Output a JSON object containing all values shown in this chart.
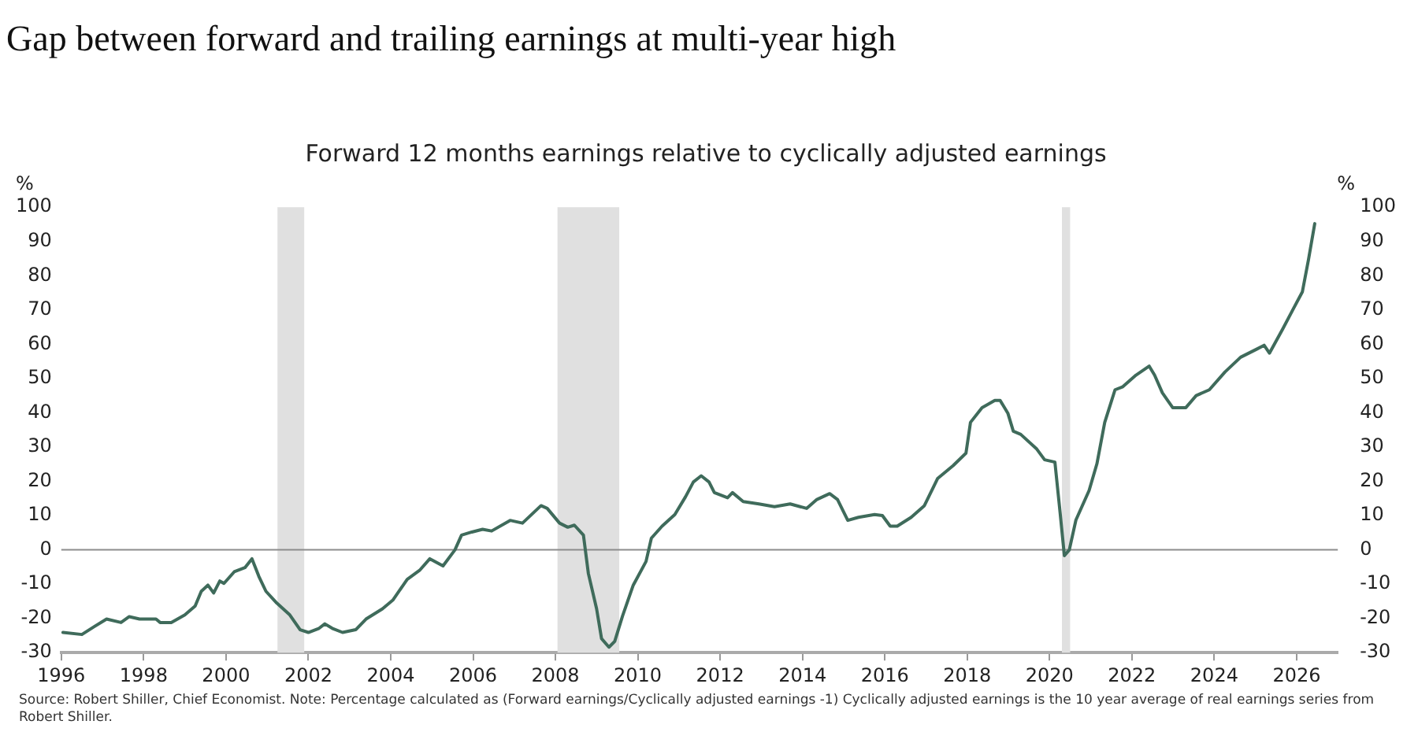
{
  "chart_data": {
    "type": "line",
    "title": "Gap between forward and trailing earnings at multi-year high",
    "subtitle": "Forward 12 months earnings relative to cyclically adjusted earnings",
    "ylabel": "%",
    "y2label": "%",
    "annotations": [
      "Source: Robert Shiller, Chief Economist. Note: Percentage calculated as (Forward earnings/Cyclically adjusted earnings -1) Cyclically adjusted earnings is the 10 year average of real earnings series from Robert Shiller."
    ],
    "xlim": [
      1996,
      2027
    ],
    "xticks": [
      1996,
      1998,
      2000,
      2002,
      2004,
      2006,
      2008,
      2010,
      2012,
      2014,
      2016,
      2018,
      2020,
      2022,
      2024,
      2026
    ],
    "ylim": [
      -30,
      100
    ],
    "yticks": [
      -30,
      -20,
      -10,
      0,
      10,
      20,
      30,
      40,
      50,
      60,
      70,
      80,
      90,
      100
    ],
    "y2lim": [
      -30,
      100
    ],
    "y2ticks": [
      -30,
      -20,
      -10,
      0,
      10,
      20,
      30,
      40,
      50,
      60,
      70,
      80,
      90,
      100
    ],
    "legend": false,
    "ref_lines": [
      {
        "axis": "y",
        "value": 0,
        "color": "#8c8c8c"
      }
    ],
    "bands": [
      {
        "axis": "x",
        "from": 2001.25,
        "to": 2001.9,
        "color": "#e0e0e0"
      },
      {
        "axis": "x",
        "from": 2008.05,
        "to": 2009.55,
        "color": "#e0e0e0"
      },
      {
        "axis": "x",
        "from": 2020.3,
        "to": 2020.5,
        "color": "#e0e0e0"
      }
    ],
    "series": [
      {
        "color": "#3f6b5b",
        "x": [
          1996.04,
          1996.5,
          1996.8,
          1997.1,
          1997.45,
          1997.65,
          1997.9,
          1998.3,
          1998.4,
          1998.67,
          1999,
          1999.25,
          1999.4,
          1999.56,
          1999.7,
          1999.85,
          1999.95,
          2000.2,
          2000.46,
          2000.63,
          2000.8,
          2000.97,
          2001.23,
          2001.55,
          2001.8,
          2002,
          2002.26,
          2002.4,
          2002.58,
          2002.83,
          2003.15,
          2003.4,
          2003.8,
          2004.05,
          2004.4,
          2004.7,
          2004.95,
          2005.27,
          2005.56,
          2005.72,
          2005.97,
          2006.23,
          2006.45,
          2006.9,
          2007.2,
          2007.65,
          2007.8,
          2008.1,
          2008.3,
          2008.46,
          2008.68,
          2008.8,
          2009,
          2009.12,
          2009.3,
          2009.44,
          2009.63,
          2009.89,
          2010.2,
          2010.33,
          2010.59,
          2010.9,
          2011.16,
          2011.35,
          2011.54,
          2011.73,
          2011.86,
          2012.18,
          2012.3,
          2012.56,
          2012.94,
          2013.32,
          2013.7,
          2014.1,
          2014.35,
          2014.66,
          2014.85,
          2015.1,
          2015.36,
          2015.75,
          2015.94,
          2016.13,
          2016.3,
          2016.64,
          2016.96,
          2017.28,
          2017.66,
          2017.97,
          2018.08,
          2018.36,
          2018.67,
          2018.8,
          2018.99,
          2019.12,
          2019.3,
          2019.69,
          2019.88,
          2020.13,
          2020.26,
          2020.36,
          2020.48,
          2020.64,
          2020.96,
          2021.15,
          2021.34,
          2021.59,
          2021.78,
          2022.1,
          2022.42,
          2022.55,
          2022.74,
          2022.99,
          2023.31,
          2023.56,
          2023.88,
          2024.26,
          2024.64,
          2025.02,
          2025.21,
          2025.34,
          2025.66,
          2025.91,
          2026.14,
          2026.29,
          2026.44
        ],
        "values": [
          -24.1,
          -24.7,
          -22.4,
          -20.2,
          -21.2,
          -19.5,
          -20.2,
          -20.2,
          -21.2,
          -21.2,
          -19,
          -16.4,
          -12.1,
          -10.3,
          -12.6,
          -9.1,
          -9.8,
          -6.4,
          -5.2,
          -2.6,
          -7.8,
          -12.1,
          -15.5,
          -19,
          -23.3,
          -24.1,
          -22.9,
          -21.6,
          -22.9,
          -24.1,
          -23.3,
          -20.2,
          -17.2,
          -14.7,
          -8.6,
          -6,
          -2.6,
          -4.7,
          0,
          4.3,
          5.2,
          6,
          5.5,
          8.6,
          7.8,
          12.9,
          12.1,
          7.8,
          6.6,
          7.2,
          4.3,
          -6.9,
          -17.2,
          -25.9,
          -28.4,
          -26.7,
          -19.3,
          -10.3,
          -3.4,
          3.4,
          6.9,
          10.3,
          15.5,
          19.8,
          21.6,
          19.8,
          16.7,
          15.2,
          16.7,
          14.1,
          13.4,
          12.6,
          13.4,
          12.1,
          14.7,
          16.4,
          14.7,
          8.6,
          9.5,
          10.3,
          10,
          6.9,
          6.9,
          9.5,
          12.9,
          20.8,
          24.6,
          28.2,
          37.2,
          41.5,
          43.6,
          43.6,
          39.8,
          34.6,
          33.7,
          29.4,
          26.3,
          25.6,
          10.4,
          -1.7,
          0,
          8.7,
          17.3,
          25.1,
          37.2,
          46.7,
          47.6,
          51,
          53.6,
          51,
          45.8,
          41.5,
          41.5,
          45,
          46.7,
          51.9,
          56.2,
          58.5,
          59.7,
          57.4,
          64.4,
          70.1,
          75.3,
          84.8,
          95.2
        ]
      }
    ]
  }
}
